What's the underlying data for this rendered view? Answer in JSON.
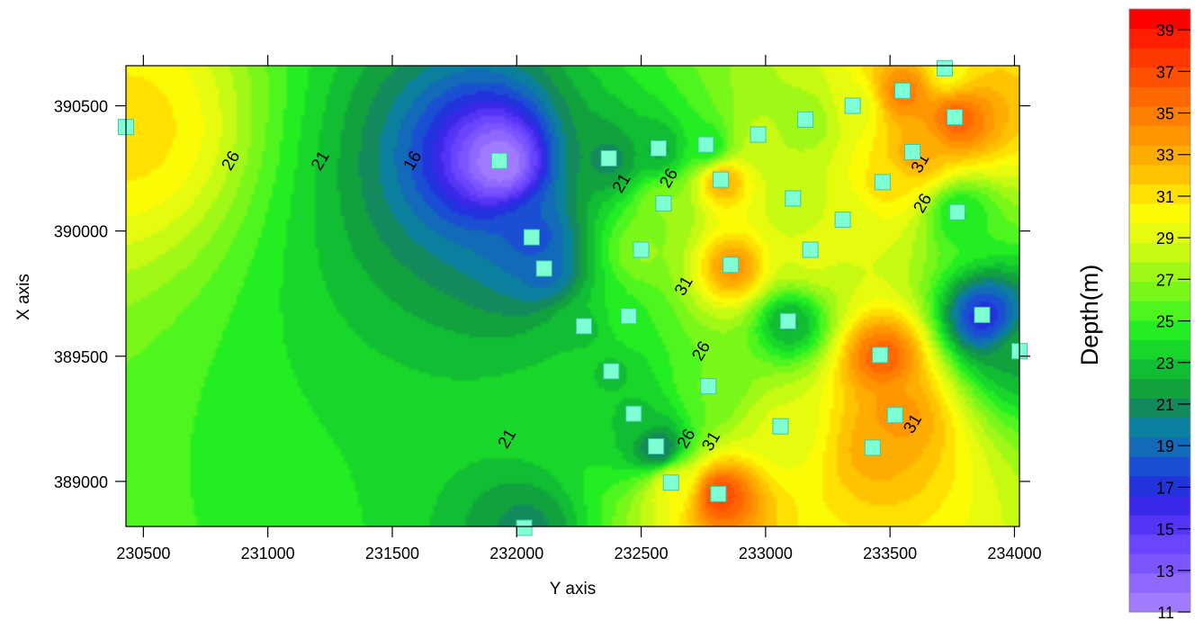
{
  "chart_data": {
    "type": "heatmap",
    "subtype": "filled-contour map with sample points",
    "xlabel": "Y axis",
    "ylabel": "X axis",
    "xlim": [
      230430,
      234020
    ],
    "ylim": [
      388820,
      390660
    ],
    "x_ticks": [
      230500,
      231000,
      231500,
      232000,
      232500,
      233000,
      233500,
      234000
    ],
    "y_ticks": [
      389000,
      389500,
      390000,
      390500
    ],
    "colorbar": {
      "label": "Depth(m)",
      "min": 11,
      "max": 40,
      "ticks": [
        11,
        13,
        15,
        17,
        19,
        21,
        23,
        25,
        27,
        29,
        31,
        33,
        35,
        37,
        39
      ],
      "colors": [
        "#a07aff",
        "#8f68ff",
        "#7c55ff",
        "#6a45ff",
        "#5535f5",
        "#3a28e8",
        "#2233dd",
        "#1a4fd4",
        "#126ab8",
        "#0b7f9e",
        "#138a5e",
        "#11a23e",
        "#10bd33",
        "#18d62a",
        "#22ee22",
        "#4ef51e",
        "#78f719",
        "#a0f816",
        "#c6fa12",
        "#e6fb0e",
        "#fbfb06",
        "#ffe000",
        "#ffc300",
        "#ffac00",
        "#ff9600",
        "#ff7f00",
        "#ff6800",
        "#ff5000",
        "#ff3800",
        "#ff1f00",
        "#ff0000"
      ]
    },
    "contour_labels": [
      {
        "text": "26",
        "x": 230870,
        "y": 390270
      },
      {
        "text": "21",
        "x": 231230,
        "y": 390270
      },
      {
        "text": "16",
        "x": 231600,
        "y": 390270
      },
      {
        "text": "21",
        "x": 232440,
        "y": 390180
      },
      {
        "text": "26",
        "x": 232630,
        "y": 390200
      },
      {
        "text": "31",
        "x": 233640,
        "y": 390260
      },
      {
        "text": "26",
        "x": 233650,
        "y": 390100
      },
      {
        "text": "31",
        "x": 232690,
        "y": 389770
      },
      {
        "text": "26",
        "x": 232760,
        "y": 389510
      },
      {
        "text": "21",
        "x": 231980,
        "y": 389160
      },
      {
        "text": "26",
        "x": 232700,
        "y": 389160
      },
      {
        "text": "31",
        "x": 232800,
        "y": 389150
      },
      {
        "text": "31",
        "x": 233610,
        "y": 389220
      }
    ],
    "points": [
      {
        "x": 230430,
        "y": 390415,
        "v": 31
      },
      {
        "x": 231930,
        "y": 390280,
        "v": 11
      },
      {
        "x": 232060,
        "y": 389975,
        "v": 18
      },
      {
        "x": 232110,
        "y": 389850,
        "v": 19
      },
      {
        "x": 232270,
        "y": 389620,
        "v": 23
      },
      {
        "x": 232370,
        "y": 390290,
        "v": 21
      },
      {
        "x": 232380,
        "y": 389440,
        "v": 23
      },
      {
        "x": 232450,
        "y": 389660,
        "v": 25
      },
      {
        "x": 232470,
        "y": 389270,
        "v": 23
      },
      {
        "x": 232500,
        "y": 389925,
        "v": 27
      },
      {
        "x": 232560,
        "y": 389140,
        "v": 20
      },
      {
        "x": 232570,
        "y": 390330,
        "v": 22
      },
      {
        "x": 232590,
        "y": 390110,
        "v": 27
      },
      {
        "x": 232620,
        "y": 388995,
        "v": 30
      },
      {
        "x": 232760,
        "y": 390345,
        "v": 24
      },
      {
        "x": 232770,
        "y": 389380,
        "v": 26
      },
      {
        "x": 232810,
        "y": 388950,
        "v": 37
      },
      {
        "x": 232820,
        "y": 390205,
        "v": 33
      },
      {
        "x": 232860,
        "y": 389865,
        "v": 34
      },
      {
        "x": 232970,
        "y": 390385,
        "v": 28
      },
      {
        "x": 233060,
        "y": 389220,
        "v": 29
      },
      {
        "x": 233090,
        "y": 389640,
        "v": 22
      },
      {
        "x": 233110,
        "y": 390130,
        "v": 28
      },
      {
        "x": 233160,
        "y": 390445,
        "v": 27
      },
      {
        "x": 233180,
        "y": 389925,
        "v": 29
      },
      {
        "x": 233310,
        "y": 390045,
        "v": 29
      },
      {
        "x": 233350,
        "y": 390500,
        "v": 29
      },
      {
        "x": 233430,
        "y": 389135,
        "v": 33
      },
      {
        "x": 233460,
        "y": 389505,
        "v": 36
      },
      {
        "x": 233470,
        "y": 390195,
        "v": 31
      },
      {
        "x": 233520,
        "y": 389265,
        "v": 34
      },
      {
        "x": 233550,
        "y": 390560,
        "v": 35
      },
      {
        "x": 233590,
        "y": 390315,
        "v": 33
      },
      {
        "x": 233720,
        "y": 390650,
        "v": 30
      },
      {
        "x": 233760,
        "y": 390455,
        "v": 36
      },
      {
        "x": 233770,
        "y": 390075,
        "v": 24
      },
      {
        "x": 233870,
        "y": 389665,
        "v": 17
      },
      {
        "x": 234020,
        "y": 389520,
        "v": 22
      },
      {
        "x": 232030,
        "y": 388815,
        "v": 21
      }
    ],
    "grid": false,
    "legend": "colorbar-right",
    "colors": {
      "marker": "#7fffd4",
      "marker_stroke": "#40c8a8"
    }
  }
}
